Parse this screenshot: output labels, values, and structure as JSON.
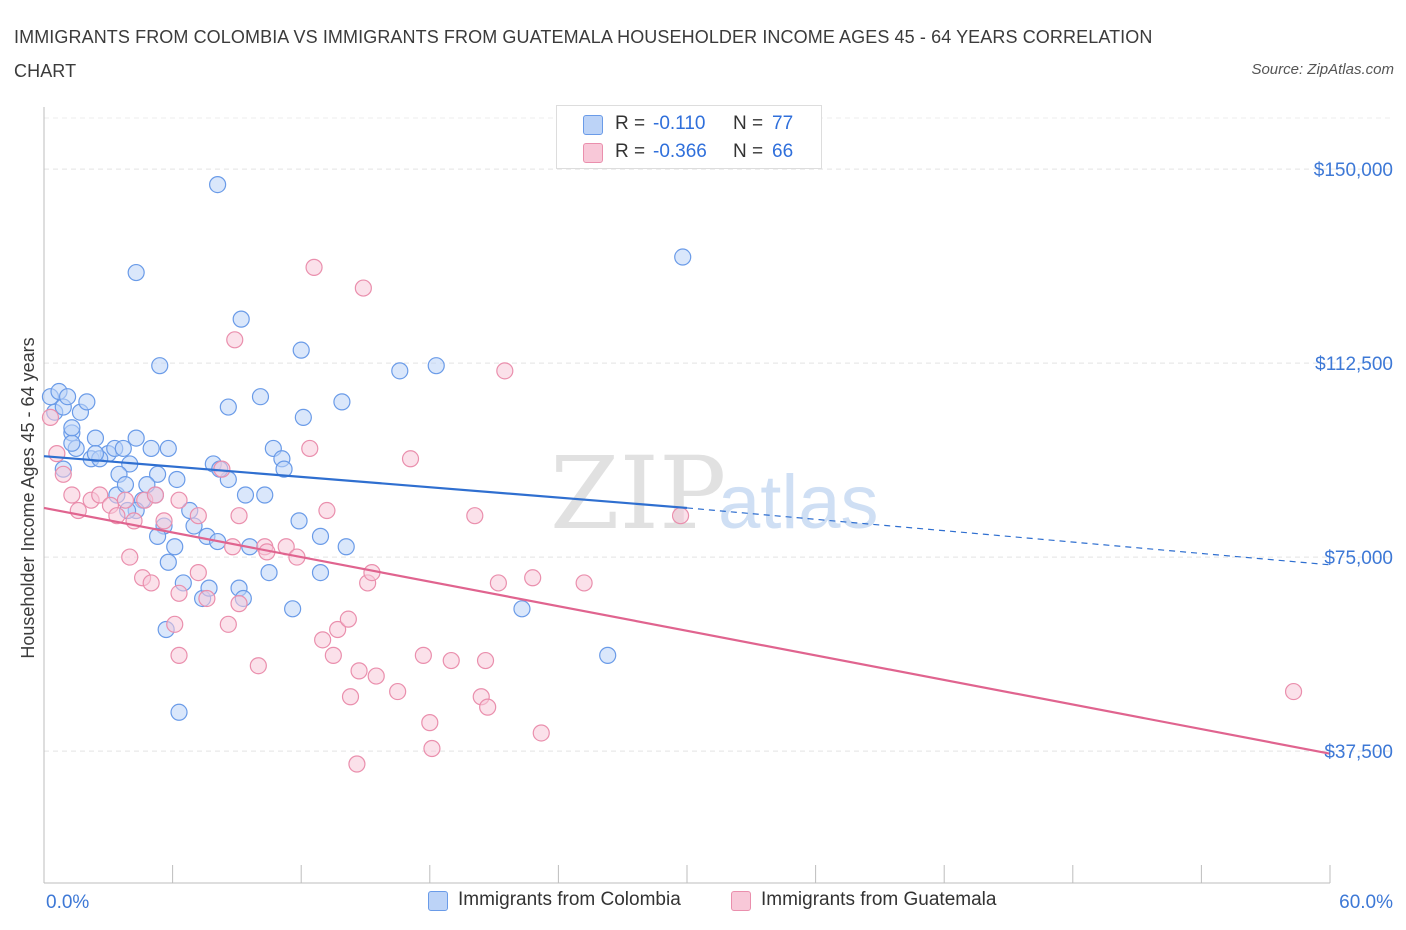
{
  "title": "IMMIGRANTS FROM COLOMBIA VS IMMIGRANTS FROM GUATEMALA HOUSEHOLDER INCOME AGES 45 - 64 YEARS CORRELATION CHART",
  "source": "Source: ZipAtlas.com",
  "watermark": {
    "zip": "ZIP",
    "atlas": "atlas"
  },
  "legend": {
    "r_label": "R =",
    "n_label": "N =",
    "rows": [
      {
        "r": "-0.110",
        "n": "77",
        "color": "#6a9be8",
        "fill": "#bcd3f7"
      },
      {
        "r": "-0.366",
        "n": "66",
        "color": "#ea8fad",
        "fill": "#f8c8d8"
      }
    ]
  },
  "chart_data": {
    "type": "scatter",
    "title": "IMMIGRANTS FROM COLOMBIA VS IMMIGRANTS FROM GUATEMALA HOUSEHOLDER INCOME AGES 45 - 64 YEARS CORRELATION CHART",
    "xlabel": "",
    "ylabel": "Householder Income Ages 45 - 64 years",
    "xlim": [
      0,
      60
    ],
    "ylim": [
      12000,
      162000
    ],
    "x_tick_labels": [
      "0.0%",
      "60.0%"
    ],
    "y_ticks": [
      37500,
      75000,
      112500,
      150000
    ],
    "y_tick_labels": [
      "$37,500",
      "$75,000",
      "$112,500",
      "$150,000"
    ],
    "grid": true,
    "series": [
      {
        "name": "Immigrants from Colombia",
        "color": "#6a9be8",
        "fill": "#bcd3f7",
        "trend": {
          "x_start": 0,
          "y_start": 94500,
          "x_end": 30,
          "y_end": 84500,
          "dash_x_end": 60,
          "dash_y_end": 73500
        },
        "points": [
          [
            0.3,
            106
          ],
          [
            0.5,
            103
          ],
          [
            0.7,
            107
          ],
          [
            0.9,
            104
          ],
          [
            1.1,
            106
          ],
          [
            1.3,
            99
          ],
          [
            1.5,
            96
          ],
          [
            1.7,
            103
          ],
          [
            2.0,
            105
          ],
          [
            2.4,
            98
          ],
          [
            0.9,
            92
          ],
          [
            1.3,
            97
          ],
          [
            2.2,
            94
          ],
          [
            3.0,
            95
          ],
          [
            3.3,
            96
          ],
          [
            3.7,
            96
          ],
          [
            4.3,
            98
          ],
          [
            4.0,
            93
          ],
          [
            2.6,
            94
          ],
          [
            3.5,
            91
          ],
          [
            5.0,
            96
          ],
          [
            5.3,
            91
          ],
          [
            4.6,
            86
          ],
          [
            5.8,
            96
          ],
          [
            5.2,
            87
          ],
          [
            6.2,
            90
          ],
          [
            7.9,
            93
          ],
          [
            8.6,
            90
          ],
          [
            4.3,
            84
          ],
          [
            3.9,
            84
          ],
          [
            5.6,
            81
          ],
          [
            6.8,
            84
          ],
          [
            7.0,
            81
          ],
          [
            8.2,
            92
          ],
          [
            9.4,
            87
          ],
          [
            7.6,
            79
          ],
          [
            5.3,
            79
          ],
          [
            6.1,
            77
          ],
          [
            5.8,
            74
          ],
          [
            6.5,
            70
          ],
          [
            7.4,
            67
          ],
          [
            7.7,
            69
          ],
          [
            9.1,
            69
          ],
          [
            9.6,
            77
          ],
          [
            10.5,
            72
          ],
          [
            11.6,
            65
          ],
          [
            11.9,
            82
          ],
          [
            12.9,
            79
          ],
          [
            10.7,
            96
          ],
          [
            11.1,
            94
          ],
          [
            12.1,
            102
          ],
          [
            10.1,
            106
          ],
          [
            8.6,
            104
          ],
          [
            11.2,
            92
          ],
          [
            4.3,
            130
          ],
          [
            5.4,
            112
          ],
          [
            9.2,
            121
          ],
          [
            12.0,
            115
          ],
          [
            13.9,
            105
          ],
          [
            8.1,
            147
          ],
          [
            16.6,
            111
          ],
          [
            18.3,
            112
          ],
          [
            29.8,
            133
          ],
          [
            22.3,
            65
          ],
          [
            26.3,
            56
          ],
          [
            6.3,
            45
          ],
          [
            5.7,
            61
          ],
          [
            9.3,
            67
          ],
          [
            8.1,
            78
          ],
          [
            10.3,
            87
          ],
          [
            12.9,
            72
          ],
          [
            14.1,
            77
          ],
          [
            1.3,
            100
          ],
          [
            3.4,
            87
          ],
          [
            3.8,
            89
          ],
          [
            2.4,
            95
          ],
          [
            4.8,
            89
          ]
        ]
      },
      {
        "name": "Immigrants from Guatemala",
        "color": "#ea8fad",
        "fill": "#f8c8d8",
        "trend": {
          "x_start": 0,
          "y_start": 84500,
          "x_end": 60,
          "y_end": 37000
        },
        "points": [
          [
            0.3,
            102
          ],
          [
            0.6,
            95
          ],
          [
            0.9,
            91
          ],
          [
            1.3,
            87
          ],
          [
            1.6,
            84
          ],
          [
            2.2,
            86
          ],
          [
            2.6,
            87
          ],
          [
            3.1,
            85
          ],
          [
            3.4,
            83
          ],
          [
            3.8,
            86
          ],
          [
            4.2,
            82
          ],
          [
            4.7,
            86
          ],
          [
            5.2,
            87
          ],
          [
            5.6,
            82
          ],
          [
            6.3,
            86
          ],
          [
            7.2,
            83
          ],
          [
            8.3,
            92
          ],
          [
            9.1,
            83
          ],
          [
            10.3,
            77
          ],
          [
            11.3,
            77
          ],
          [
            11.8,
            75
          ],
          [
            12.4,
            96
          ],
          [
            13.2,
            84
          ],
          [
            4.0,
            75
          ],
          [
            4.6,
            71
          ],
          [
            6.3,
            68
          ],
          [
            7.2,
            72
          ],
          [
            7.6,
            67
          ],
          [
            8.8,
            77
          ],
          [
            9.1,
            66
          ],
          [
            8.6,
            62
          ],
          [
            6.1,
            62
          ],
          [
            6.3,
            56
          ],
          [
            10.0,
            54
          ],
          [
            13.0,
            59
          ],
          [
            13.7,
            61
          ],
          [
            13.5,
            56
          ],
          [
            14.2,
            63
          ],
          [
            14.7,
            53
          ],
          [
            15.1,
            70
          ],
          [
            15.3,
            72
          ],
          [
            14.3,
            48
          ],
          [
            15.5,
            52
          ],
          [
            16.5,
            49
          ],
          [
            17.7,
            56
          ],
          [
            18.0,
            43
          ],
          [
            18.1,
            38
          ],
          [
            17.1,
            94
          ],
          [
            19.0,
            55
          ],
          [
            20.1,
            83
          ],
          [
            20.6,
            55
          ],
          [
            21.2,
            70
          ],
          [
            22.8,
            71
          ],
          [
            20.4,
            48
          ],
          [
            20.7,
            46
          ],
          [
            23.2,
            41
          ],
          [
            25.2,
            70
          ],
          [
            29.7,
            83
          ],
          [
            58.3,
            49
          ],
          [
            12.6,
            131
          ],
          [
            14.9,
            127
          ],
          [
            8.9,
            117
          ],
          [
            21.5,
            111
          ],
          [
            14.6,
            35
          ],
          [
            10.4,
            76
          ],
          [
            5.0,
            70
          ]
        ]
      }
    ]
  },
  "bottom_legend": [
    "Immigrants from Colombia",
    "Immigrants from Guatemala"
  ]
}
